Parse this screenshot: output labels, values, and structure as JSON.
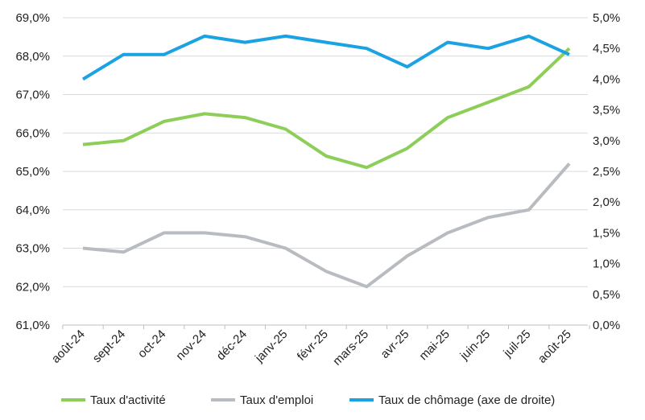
{
  "chart_data": {
    "type": "line",
    "title": "",
    "categories": [
      "août-24",
      "sept-24",
      "oct-24",
      "nov-24",
      "déc-24",
      "janv-25",
      "févr-25",
      "mars-25",
      "avr-25",
      "mai-25",
      "juin-25",
      "juil-25",
      "août-25"
    ],
    "left_axis": {
      "ylim": [
        61.0,
        69.0
      ],
      "ticks": [
        61.0,
        62.0,
        63.0,
        64.0,
        65.0,
        66.0,
        67.0,
        68.0,
        69.0
      ],
      "tick_labels": [
        "61,0%",
        "62,0%",
        "63,0%",
        "64,0%",
        "65,0%",
        "66,0%",
        "67,0%",
        "68,0%",
        "69,0%"
      ]
    },
    "right_axis": {
      "ylim": [
        0.0,
        5.0
      ],
      "ticks": [
        0.0,
        0.5,
        1.0,
        1.5,
        2.0,
        2.5,
        3.0,
        3.5,
        4.0,
        4.5,
        5.0
      ],
      "tick_labels": [
        "0,0%",
        "0,5%",
        "1,0%",
        "1,5%",
        "2,0%",
        "2,5%",
        "3,0%",
        "3,5%",
        "4,0%",
        "4,5%",
        "5,0%"
      ]
    },
    "grid": "horizontal",
    "legend_position": "bottom",
    "series": [
      {
        "name": "Taux d'activité",
        "axis": "left",
        "color": "#8cce58",
        "values": [
          65.7,
          65.8,
          66.3,
          66.5,
          66.4,
          66.1,
          65.4,
          65.1,
          65.6,
          66.4,
          66.8,
          67.2,
          68.2
        ]
      },
      {
        "name": "Taux d'emploi",
        "axis": "left",
        "color": "#b8bcc0",
        "values": [
          63.0,
          62.9,
          63.4,
          63.4,
          63.3,
          63.0,
          62.4,
          62.0,
          62.8,
          63.4,
          63.8,
          64.0,
          65.2
        ]
      },
      {
        "name": "Taux de chômage (axe de droite)",
        "axis": "right",
        "color": "#1aa2e3",
        "values": [
          4.0,
          4.4,
          4.4,
          4.7,
          4.6,
          4.7,
          4.6,
          4.5,
          4.2,
          4.6,
          4.5,
          4.7,
          4.4
        ]
      }
    ]
  }
}
